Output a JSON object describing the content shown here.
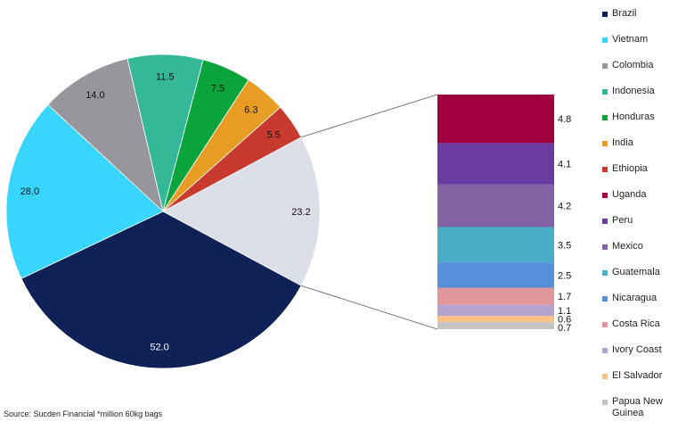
{
  "chart_data": {
    "type": "pie",
    "title": "",
    "main_pie": [
      {
        "label": "Brazil",
        "value": 52.0,
        "display": "52.0",
        "color": "#0e2257"
      },
      {
        "label": "Vietnam",
        "value": 28.0,
        "display": "28.0",
        "color": "#38d6ff"
      },
      {
        "label": "Colombia",
        "value": 14.0,
        "display": "14.0",
        "color": "#96969c"
      },
      {
        "label": "Indonesia",
        "value": 11.5,
        "display": "11.5",
        "color": "#34b898"
      },
      {
        "label": "Honduras",
        "value": 7.5,
        "display": "7.5",
        "color": "#0aa33c"
      },
      {
        "label": "India",
        "value": 6.3,
        "display": "6.3",
        "color": "#e89c24"
      },
      {
        "label": "Ethiopia",
        "value": 5.5,
        "display": "5.5",
        "color": "#c83a2e"
      },
      {
        "label": "",
        "value": 23.2,
        "display": "23.2",
        "color": "#dcdee8",
        "is_breakout": true
      }
    ],
    "breakout_bar": [
      {
        "label": "Uganda",
        "value": 4.8,
        "display": "4.8",
        "color": "#a0003e"
      },
      {
        "label": "Peru",
        "value": 4.1,
        "display": "4.1",
        "color": "#6a3ca2"
      },
      {
        "label": "Mexico",
        "value": 4.2,
        "display": "4.2",
        "color": "#8264a4"
      },
      {
        "label": "Guatemala",
        "value": 3.5,
        "display": "3.5",
        "color": "#48aec8"
      },
      {
        "label": "Nicaragua",
        "value": 2.5,
        "display": "2.5",
        "color": "#5590d8"
      },
      {
        "label": "Costa Rica",
        "value": 1.7,
        "display": "1.7",
        "color": "#e0969a"
      },
      {
        "label": "Ivory Coast",
        "value": 1.1,
        "display": "1.1",
        "color": "#b4a4ce"
      },
      {
        "label": "El Salvador",
        "value": 0.6,
        "display": "0.6",
        "color": "#f8c286"
      },
      {
        "label": "Papua New Guinea",
        "value": 0.7,
        "display": "0.7",
        "color": "#c4c4c4"
      }
    ],
    "legend_order": [
      "Brazil",
      "Vietnam",
      "Colombia",
      "Indonesia",
      "Honduras",
      "India",
      "Ethiopia",
      "Uganda",
      "Peru",
      "Mexico",
      "Guatemala",
      "Nicaragua",
      "Costa Rica",
      "Ivory Coast",
      "El Salvador",
      "Papua New Guinea"
    ],
    "legend_labels": [
      "Brazil",
      "Vietnam",
      "Colombia",
      "Indonesia",
      "Honduras",
      "India",
      "Ethiopia",
      "Uganda",
      "Peru",
      "Mexico",
      "Guatemala",
      "Nicaragua",
      "Costa Rica",
      "Ivory Coast",
      "El Salvador",
      "Papua New\nGuinea"
    ],
    "legend_position": "right"
  },
  "footer": {
    "source_note": "Source: Sucden Financial  *million 60kg bags"
  }
}
